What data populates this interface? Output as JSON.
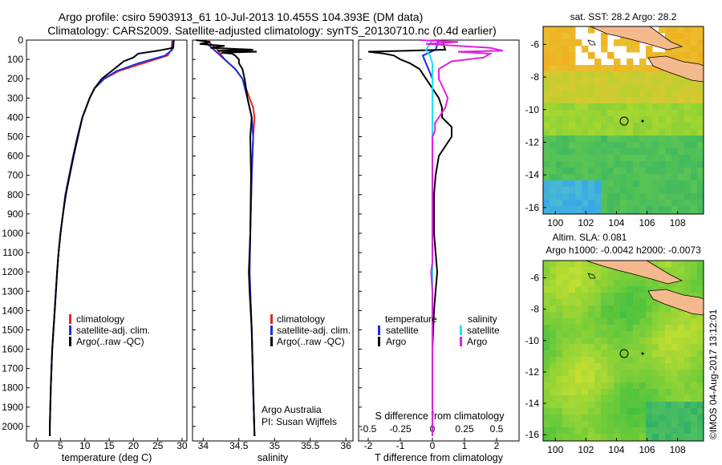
{
  "title_line1": "Argo profile: csiro 5903913_61 10-Jul-2013 10.455S 104.393E (DM data)",
  "title_line2": "Climatology: CARS2009. Satellite-adjusted climatology: synTS_20130710.nc (0.4d earlier)",
  "footer_credit": "©IMOS 04-Aug-2017 13:12:01",
  "colors": {
    "climatology": "#e8261e",
    "satellite": "#1a2ee0",
    "argo": "#000000",
    "sat_cyan": "#22e0f0",
    "argo_magenta": "#e020e0",
    "land": "#f5b98e"
  },
  "chart_data": [
    {
      "type": "line",
      "name": "temperature",
      "xlabel": "temperature (deg C)",
      "ylabel": "",
      "xlim": [
        -2,
        31
      ],
      "ylim": [
        2075,
        0
      ],
      "xticks": [
        "0",
        "5",
        "10",
        "15",
        "20",
        "25",
        "30"
      ],
      "yticks": [
        "0",
        "100",
        "200",
        "300",
        "400",
        "500",
        "600",
        "700",
        "800",
        "900",
        "1000",
        "1100",
        "1200",
        "1300",
        "1400",
        "1500",
        "1600",
        "1700",
        "1800",
        "1900",
        "2000"
      ],
      "legend": [
        "climatology",
        "satellite-adj. clim.",
        "Argo(..raw -QC)"
      ],
      "series": [
        {
          "name": "climatology",
          "depth": [
            0,
            50,
            80,
            120,
            160,
            200,
            250,
            300,
            400,
            500,
            600,
            700,
            800,
            900,
            1000,
            1100,
            1200,
            1400,
            1600,
            1800,
            2000,
            2050
          ],
          "values": [
            28,
            27.8,
            27,
            22,
            17,
            14,
            12,
            11,
            9.5,
            8.5,
            7.6,
            6.8,
            6,
            5.5,
            5,
            4.6,
            4.3,
            3.8,
            3.3,
            3,
            2.8,
            2.8
          ]
        },
        {
          "name": "satellite-adj. clim.",
          "depth": [
            0,
            50,
            80,
            120,
            160,
            200,
            250,
            300,
            400,
            500,
            600,
            700,
            800,
            900,
            1000,
            1100,
            1200,
            1400,
            1600,
            1800,
            2000,
            2050
          ],
          "values": [
            28.2,
            28,
            26.5,
            21,
            16.5,
            14,
            12,
            11,
            9.5,
            8.5,
            7.6,
            6.8,
            6,
            5.5,
            5,
            4.6,
            4.3,
            3.8,
            3.3,
            3,
            2.8,
            2.8
          ]
        },
        {
          "name": "Argo(..raw -QC)",
          "depth": [
            0,
            40,
            55,
            70,
            90,
            110,
            130,
            160,
            200,
            250,
            300,
            400,
            500,
            600,
            700,
            800,
            900,
            1000,
            1100,
            1200,
            1400,
            1600,
            1800,
            2000,
            2050
          ],
          "values": [
            28.3,
            28.2,
            25,
            21,
            20,
            18,
            17,
            15.5,
            13.5,
            12,
            11,
            9.5,
            8.6,
            7.7,
            6.9,
            6.1,
            5.5,
            5,
            4.6,
            4.3,
            3.8,
            3.3,
            3,
            2.8,
            2.8
          ]
        }
      ]
    },
    {
      "type": "line",
      "name": "salinity",
      "xlabel": "salinity",
      "xlim": [
        33.85,
        36.1
      ],
      "ylim": [
        2075,
        0
      ],
      "xticks": [
        "34",
        "34.5",
        "35",
        "35.5",
        "36"
      ],
      "legend": [
        "climatology",
        "satellite-adj. clim.",
        "Argo(..raw -QC)"
      ],
      "annotation": [
        "Argo Australia",
        "PI: Susan Wijffels"
      ],
      "series": [
        {
          "name": "climatology",
          "depth": [
            0,
            50,
            100,
            150,
            200,
            300,
            350,
            400,
            500,
            700,
            1000,
            1200,
            1500,
            1800,
            2050
          ],
          "values": [
            34.05,
            34.2,
            34.3,
            34.45,
            34.55,
            34.65,
            34.7,
            34.72,
            34.7,
            34.68,
            34.66,
            34.65,
            34.68,
            34.7,
            34.72
          ]
        },
        {
          "name": "satellite-adj. clim.",
          "depth": [
            0,
            50,
            100,
            150,
            200,
            300,
            350,
            400,
            500,
            700,
            1000,
            1200,
            1500,
            1800,
            2050
          ],
          "values": [
            34.0,
            34.15,
            34.3,
            34.45,
            34.55,
            34.62,
            34.65,
            34.68,
            34.7,
            34.68,
            34.66,
            34.65,
            34.68,
            34.7,
            34.72
          ]
        },
        {
          "name": "Argo(..raw -QC)",
          "depth": [
            0,
            10,
            20,
            30,
            40,
            50,
            55,
            60,
            65,
            70,
            80,
            100,
            120,
            150,
            200,
            250,
            300,
            350,
            400,
            450,
            500,
            700,
            1000,
            1200,
            1300,
            1500,
            1800,
            2050
          ],
          "values": [
            33.9,
            34.1,
            33.95,
            34.3,
            34.1,
            34.7,
            34.2,
            34.75,
            34.25,
            34.4,
            34.45,
            34.5,
            34.5,
            34.55,
            34.58,
            34.6,
            34.62,
            34.65,
            34.68,
            34.67,
            34.66,
            34.67,
            34.66,
            34.64,
            34.65,
            34.68,
            34.7,
            34.72
          ]
        }
      ]
    },
    {
      "type": "line",
      "name": "difference",
      "xlabel": "T difference from climatology",
      "xlabel_top": "S difference from climatology",
      "xlim": [
        -2.3,
        2.7
      ],
      "ylim": [
        2075,
        0
      ],
      "xticks": [
        "-2",
        "-1",
        "0",
        "1",
        "2"
      ],
      "xticks_top": [
        "-0.5",
        "-0.25",
        "0",
        "0.25",
        "0.5"
      ],
      "legend_left": [
        "temperature",
        "satellite",
        "Argo"
      ],
      "legend_right": [
        "salinity",
        "satellite",
        "Argo"
      ],
      "series": [
        {
          "name": "T satellite",
          "depth": [
            0,
            50,
            80,
            120,
            200,
            400,
            800,
            1200,
            2050
          ],
          "values": [
            0.2,
            0.1,
            -0.3,
            -0.2,
            0.0,
            0.0,
            0.0,
            0.0,
            0.0
          ]
        },
        {
          "name": "T Argo",
          "depth": [
            0,
            50,
            60,
            70,
            80,
            100,
            120,
            150,
            200,
            250,
            300,
            350,
            400,
            450,
            500,
            550,
            600,
            700,
            800,
            1000,
            1100,
            1200,
            1300,
            1400,
            1600,
            1800,
            2000,
            2050
          ],
          "values": [
            0.3,
            0.4,
            -2.0,
            -1.5,
            -1.2,
            -1.0,
            -0.7,
            -0.4,
            -0.2,
            0.0,
            0.2,
            0.3,
            0.3,
            0.6,
            0.6,
            0.4,
            0.2,
            0.1,
            0.05,
            0.05,
            0.1,
            0.15,
            0.1,
            0.05,
            0.0,
            0.0,
            0.0,
            0.0
          ]
        },
        {
          "name": "S satellite",
          "depth": [
            0,
            50,
            80,
            120,
            200,
            300,
            500,
            1000,
            2050
          ],
          "values": [
            0.0,
            -0.05,
            -0.02,
            0.0,
            0.0,
            0.0,
            0.0,
            0.0,
            0.0
          ]
        },
        {
          "name": "S Argo",
          "depth": [
            0,
            10,
            20,
            40,
            55,
            60,
            70,
            90,
            110,
            150,
            200,
            300,
            350,
            400,
            430,
            450,
            470,
            500,
            800,
            1150,
            1200,
            1300,
            2050
          ],
          "values": [
            -0.1,
            0.2,
            -0.05,
            0.45,
            0.55,
            0.2,
            0.45,
            0.4,
            0.15,
            0.05,
            0.05,
            0.12,
            0.1,
            0.05,
            0.02,
            0.02,
            0.02,
            0.0,
            0.0,
            0.0,
            -0.01,
            0.0,
            0.0
          ]
        }
      ]
    },
    {
      "type": "heatmap",
      "name": "sst_map",
      "title": "sat. SST: 28.2 Argo: 28.2",
      "xlim": [
        99.2,
        109.7
      ],
      "ylim": [
        -16.4,
        -4.9
      ],
      "xticks": [
        "100",
        "102",
        "104",
        "106",
        "108"
      ],
      "yticks": [
        "-6",
        "-8",
        "-10",
        "-12",
        "-14",
        "-16"
      ],
      "argo_position": [
        104.393,
        -10.455
      ]
    },
    {
      "type": "heatmap",
      "name": "sla_map",
      "title_line1": "Altim. SLA: 0.081",
      "title_line2": "Argo h1000: -0.0042 h2000: -0.0073",
      "xlim": [
        99.2,
        109.7
      ],
      "ylim": [
        -16.4,
        -4.9
      ],
      "xticks": [
        "100",
        "102",
        "104",
        "106",
        "108"
      ],
      "yticks": [
        "-6",
        "-8",
        "-10",
        "-12",
        "-14",
        "-16"
      ],
      "argo_position": [
        104.393,
        -10.455
      ]
    }
  ]
}
